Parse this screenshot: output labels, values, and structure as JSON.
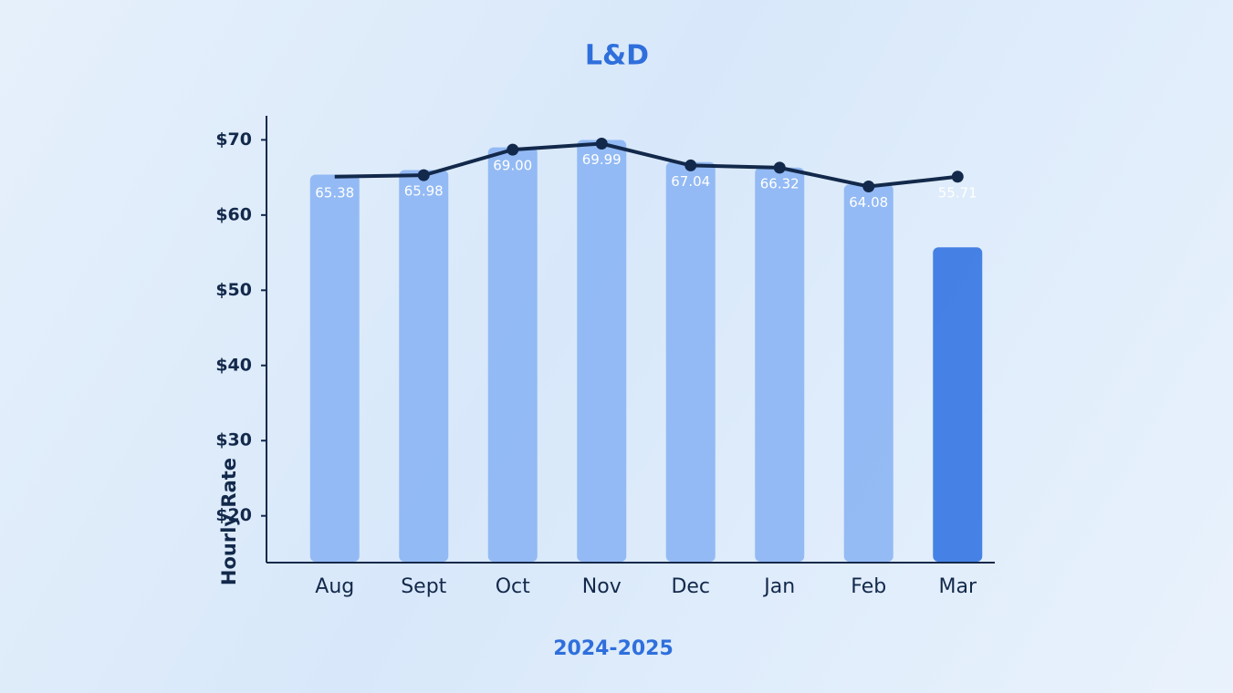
{
  "chart_data": {
    "type": "bar",
    "title": "L&D",
    "x_label": "2024-2025",
    "y_label": "Hourly Rate",
    "categories": [
      "Aug",
      "Sept",
      "Oct",
      "Nov",
      "Dec",
      "Jan",
      "Feb",
      "Mar"
    ],
    "values": [
      65.38,
      65.98,
      69.0,
      69.99,
      67.04,
      66.32,
      64.08,
      55.71
    ],
    "value_labels": [
      "65.38",
      "65.98",
      "69.00",
      "69.99",
      "67.04",
      "66.32",
      "64.08",
      "55.71"
    ],
    "colors": [
      "#86b1f2",
      "#86b1f2",
      "#86b1f2",
      "#86b1f2",
      "#86b1f2",
      "#86b1f2",
      "#86b1f2",
      "#2a6ee0"
    ],
    "line": {
      "color": "#13294b",
      "values": [
        65.1,
        65.3,
        68.7,
        69.5,
        66.6,
        66.3,
        63.8,
        65.1
      ]
    },
    "ylim": [
      13.9,
      73.2
    ],
    "yticks": [
      {
        "value": 20,
        "label": "$20"
      },
      {
        "value": 30,
        "label": "$30"
      },
      {
        "value": 40,
        "label": "$40"
      },
      {
        "value": 50,
        "label": "$50"
      },
      {
        "value": 60,
        "label": "$60"
      },
      {
        "value": 70,
        "label": "$70"
      }
    ]
  }
}
